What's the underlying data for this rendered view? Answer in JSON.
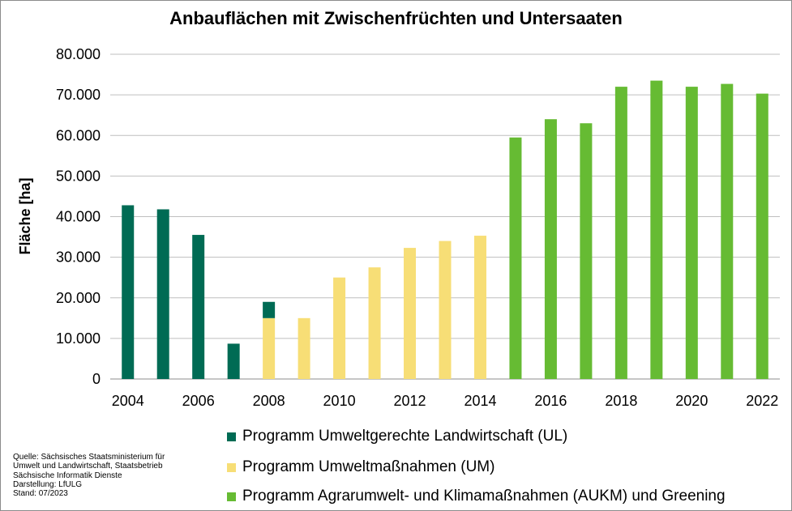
{
  "chart_data": {
    "type": "bar",
    "title": "Anbauflächen mit Zwischenfrüchten und Untersaaten",
    "xlabel": "",
    "ylabel": "Fläche [ha]",
    "ylim": [
      0,
      80000
    ],
    "yticks": [
      "0",
      "10.000",
      "20.000",
      "30.000",
      "40.000",
      "50.000",
      "60.000",
      "70.000",
      "80.000"
    ],
    "grid": true,
    "legend_position": "bottom",
    "categories": [
      "2004",
      "2005",
      "2006",
      "2007",
      "2008",
      "2009",
      "2010",
      "2011",
      "2012",
      "2013",
      "2014",
      "2015",
      "2016",
      "2017",
      "2018",
      "2019",
      "2020",
      "2021",
      "2022"
    ],
    "xtick_labels": [
      "2004",
      "",
      "2006",
      "",
      "2008",
      "",
      "2010",
      "",
      "2012",
      "",
      "2014",
      "",
      "2016",
      "",
      "2018",
      "",
      "2020",
      "",
      "2022"
    ],
    "stacked": true,
    "series": [
      {
        "name": "Programm Umweltgerechte Landwirtschaft (UL)",
        "color": "#006B54",
        "values": [
          42800,
          41800,
          35500,
          8700,
          4000,
          0,
          0,
          0,
          0,
          0,
          0,
          0,
          0,
          0,
          0,
          0,
          0,
          0,
          0
        ]
      },
      {
        "name": "Programm Umweltmaßnahmen (UM)",
        "color": "#F7DE76",
        "values": [
          0,
          0,
          0,
          0,
          15000,
          15000,
          25000,
          27500,
          32300,
          34000,
          35300,
          0,
          0,
          0,
          0,
          0,
          0,
          0,
          0
        ]
      },
      {
        "name": "Programm Agrarumwelt- und Klimamaßnahmen (AUKM) und Greening",
        "color": "#66BB33",
        "values": [
          0,
          0,
          0,
          0,
          0,
          0,
          0,
          0,
          0,
          0,
          0,
          59500,
          64000,
          63000,
          72000,
          73500,
          72000,
          72700,
          70300
        ]
      }
    ],
    "stack_order": [
      1,
      0,
      2
    ]
  },
  "source": {
    "lines": [
      "Quelle:  Sächsisches Staatsministerium für",
      "Umwelt und Landwirtschaft, Staatsbetrieb",
      "Sächsische Informatik Dienste",
      "Darstellung: LfULG",
      "Stand: 07/2023"
    ]
  }
}
